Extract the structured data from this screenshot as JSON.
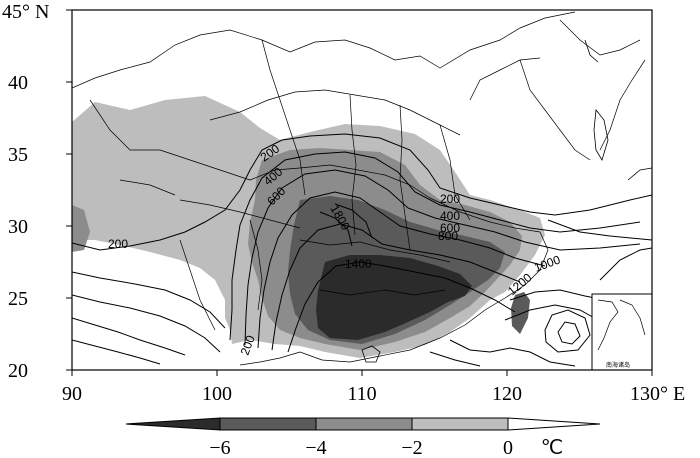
{
  "map": {
    "lat_axis": {
      "ticks": [
        "20",
        "25",
        "30",
        "35",
        "40"
      ],
      "top_label": "45° N"
    },
    "lon_axis": {
      "ticks": [
        "90",
        "100",
        "110",
        "120"
      ],
      "end_label": "130° E"
    },
    "contour_labels": [
      "200",
      "400",
      "600",
      "800",
      "1000",
      "1200",
      "1400",
      "1800",
      "200",
      "400",
      "600",
      "800",
      "1000",
      "1200",
      "200",
      "200"
    ],
    "inset_label": "南海诸岛",
    "shading_colors": {
      "minus6": "#2b2b2b",
      "minus4": "#5a5a5a",
      "minus2": "#8c8c8c",
      "zero": "#bdbdbd"
    }
  },
  "colorbar": {
    "labels": [
      "−6",
      "−4",
      "−2",
      "0"
    ],
    "unit": "℃"
  }
}
